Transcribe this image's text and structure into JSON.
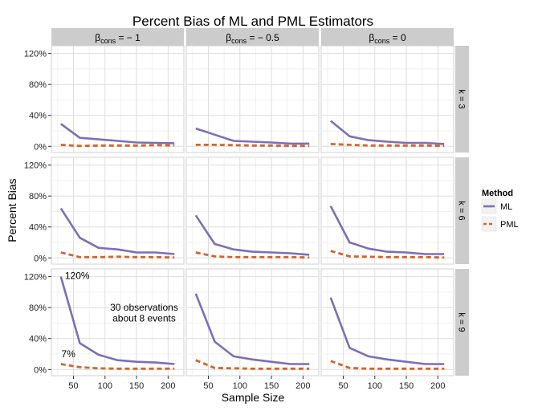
{
  "chart_data": {
    "type": "line",
    "title": "Percent Bias of ML and PML Estimators",
    "xlabel": "Sample Size",
    "ylabel": "Percent Bias",
    "x": [
      30,
      60,
      90,
      120,
      150,
      180,
      210
    ],
    "xlim": [
      15,
      225
    ],
    "ylim": [
      -8,
      130
    ],
    "x_ticks": [
      50,
      100,
      150,
      200
    ],
    "y_ticks": [
      0,
      40,
      80,
      120
    ],
    "y_tick_labels": [
      "0%",
      "40%",
      "80%",
      "120%"
    ],
    "grid": true,
    "legend": {
      "title": "Method",
      "placement": "right",
      "entries": [
        {
          "name": "ML",
          "color": "#7b6fb8",
          "dash": "solid"
        },
        {
          "name": "PML",
          "color": "#d2652b",
          "dash": "dashed"
        }
      ]
    },
    "column_facets": [
      {
        "prefix": "β",
        "sub": "cons",
        "suffix": " = − 1"
      },
      {
        "prefix": "β",
        "sub": "cons",
        "suffix": " = − 0.5"
      },
      {
        "prefix": "β",
        "sub": "cons",
        "suffix": " = 0"
      }
    ],
    "row_facets": [
      "k = 3",
      "k = 6",
      "k = 9"
    ],
    "panels": [
      {
        "row": 0,
        "col": 0,
        "series": [
          {
            "name": "ML",
            "values": [
              29,
              11,
              9,
              7,
              5,
              4.5,
              4
            ]
          },
          {
            "name": "PML",
            "values": [
              2,
              0.5,
              1,
              1,
              1,
              1.5,
              1
            ]
          }
        ]
      },
      {
        "row": 0,
        "col": 1,
        "series": [
          {
            "name": "ML",
            "values": [
              23,
              15,
              7,
              6,
              5,
              3.5,
              3.5
            ]
          },
          {
            "name": "PML",
            "values": [
              2,
              2,
              1.5,
              1,
              1,
              0.5,
              0.5
            ]
          }
        ]
      },
      {
        "row": 0,
        "col": 2,
        "series": [
          {
            "name": "ML",
            "values": [
              33,
              13,
              8,
              6,
              4.5,
              4.5,
              3
            ]
          },
          {
            "name": "PML",
            "values": [
              3,
              2,
              1,
              1,
              1,
              1,
              0.5
            ]
          }
        ]
      },
      {
        "row": 1,
        "col": 0,
        "series": [
          {
            "name": "ML",
            "values": [
              64,
              26,
              13,
              11,
              7,
              7,
              5
            ]
          },
          {
            "name": "PML",
            "values": [
              7,
              1,
              1,
              1.5,
              1,
              1,
              0.5
            ]
          }
        ]
      },
      {
        "row": 1,
        "col": 1,
        "series": [
          {
            "name": "ML",
            "values": [
              55,
              18,
              11,
              8,
              7,
              6,
              4
            ]
          },
          {
            "name": "PML",
            "values": [
              7,
              2,
              1,
              1,
              1,
              1,
              0.5
            ]
          }
        ]
      },
      {
        "row": 1,
        "col": 2,
        "series": [
          {
            "name": "ML",
            "values": [
              67,
              20,
              12,
              8,
              7,
              5,
              5
            ]
          },
          {
            "name": "PML",
            "values": [
              9,
              2,
              1.5,
              1,
              1,
              1,
              0.5
            ]
          }
        ]
      },
      {
        "row": 2,
        "col": 0,
        "series": [
          {
            "name": "ML",
            "values": [
              120,
              34,
              19,
              12,
              10,
              9,
              7
            ]
          },
          {
            "name": "PML",
            "values": [
              7,
              3,
              1.5,
              1,
              1,
              1,
              1
            ]
          }
        ]
      },
      {
        "row": 2,
        "col": 1,
        "series": [
          {
            "name": "ML",
            "values": [
              98,
              36,
              17,
              13,
              10,
              7,
              7
            ]
          },
          {
            "name": "PML",
            "values": [
              12,
              2,
              1.5,
              1,
              1,
              1,
              1
            ]
          }
        ]
      },
      {
        "row": 2,
        "col": 2,
        "series": [
          {
            "name": "ML",
            "values": [
              93,
              28,
              17,
              13,
              10,
              7,
              7
            ]
          },
          {
            "name": "PML",
            "values": [
              11,
              2,
              1,
              1,
              1,
              1,
              1
            ]
          }
        ]
      }
    ],
    "annotations": [
      {
        "row": 2,
        "col": 0,
        "text": "120%",
        "x": 56,
        "y": 117
      },
      {
        "row": 2,
        "col": 0,
        "text": "7%",
        "x": 42,
        "y": 16
      },
      {
        "row": 2,
        "col": 0,
        "text": "30 observations",
        "x": 162,
        "y": 76
      },
      {
        "row": 2,
        "col": 0,
        "text": "about 8 events",
        "x": 162,
        "y": 62
      }
    ]
  }
}
